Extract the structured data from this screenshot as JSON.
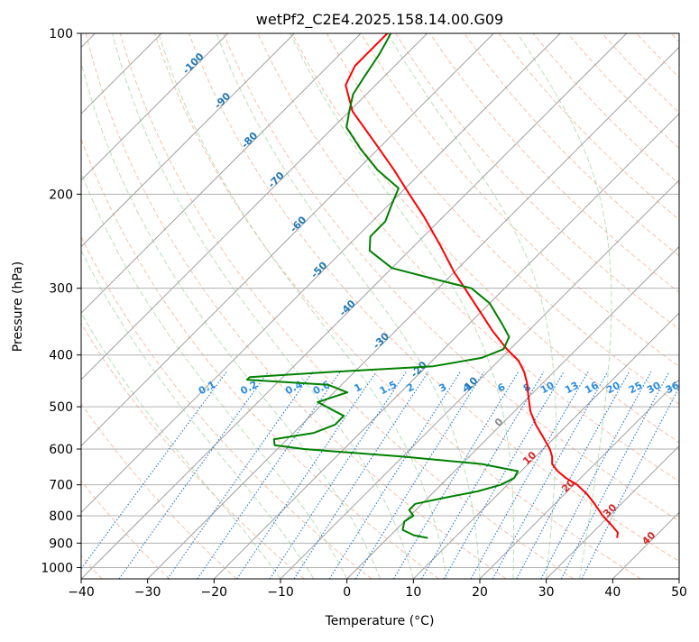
{
  "chart_data": {
    "type": "line",
    "title": "wetPf2_C2E4.2025.158.14.00.G09",
    "xlabel": "Temperature (°C)",
    "ylabel": "Pressure (hPa)",
    "xlim": [
      -40,
      50
    ],
    "ylim": [
      1050,
      100
    ],
    "y_scale": "log",
    "skew": true,
    "grid": true,
    "x_ticks": [
      -40,
      -30,
      -20,
      -10,
      0,
      10,
      20,
      30,
      40,
      50
    ],
    "y_ticks": [
      1000,
      900,
      800,
      700,
      600,
      500,
      400,
      300,
      200,
      100
    ],
    "series": [
      {
        "key": "temperature",
        "color": "#ff0000",
        "points": [
          {
            "p": 880,
            "t": 34.5
          },
          {
            "p": 860,
            "t": 33.8
          },
          {
            "p": 830,
            "t": 31.5
          },
          {
            "p": 800,
            "t": 29.0
          },
          {
            "p": 760,
            "t": 26.0
          },
          {
            "p": 730,
            "t": 23.5
          },
          {
            "p": 700,
            "t": 20.5
          },
          {
            "p": 680,
            "t": 17.8
          },
          {
            "p": 660,
            "t": 15.5
          },
          {
            "p": 640,
            "t": 13.6
          },
          {
            "p": 620,
            "t": 12.5
          },
          {
            "p": 600,
            "t": 11.0
          },
          {
            "p": 570,
            "t": 8.2
          },
          {
            "p": 540,
            "t": 5.2
          },
          {
            "p": 510,
            "t": 2.4
          },
          {
            "p": 480,
            "t": 0.0
          },
          {
            "p": 450,
            "t": -2.5
          },
          {
            "p": 430,
            "t": -4.5
          },
          {
            "p": 410,
            "t": -7.0
          },
          {
            "p": 390,
            "t": -10.5
          },
          {
            "p": 360,
            "t": -15.5
          },
          {
            "p": 330,
            "t": -20.5
          },
          {
            "p": 300,
            "t": -26.0
          },
          {
            "p": 280,
            "t": -30.0
          },
          {
            "p": 250,
            "t": -36.0
          },
          {
            "p": 220,
            "t": -43.0
          },
          {
            "p": 200,
            "t": -48.5
          },
          {
            "p": 180,
            "t": -54.5
          },
          {
            "p": 160,
            "t": -61.5
          },
          {
            "p": 140,
            "t": -69.5
          },
          {
            "p": 125,
            "t": -74.5
          },
          {
            "p": 115,
            "t": -76.0
          },
          {
            "p": 108,
            "t": -76.0
          },
          {
            "p": 100,
            "t": -76.0
          }
        ]
      },
      {
        "key": "dewpoint",
        "color": "#008000",
        "points": [
          {
            "p": 880,
            "t": 6.0
          },
          {
            "p": 870,
            "t": 3.5
          },
          {
            "p": 850,
            "t": 1.0
          },
          {
            "p": 820,
            "t": 0.0
          },
          {
            "p": 800,
            "t": 0.5
          },
          {
            "p": 780,
            "t": -1.0
          },
          {
            "p": 760,
            "t": -1.0
          },
          {
            "p": 740,
            "t": 2.5
          },
          {
            "p": 720,
            "t": 6.5
          },
          {
            "p": 700,
            "t": 9.0
          },
          {
            "p": 680,
            "t": 10.0
          },
          {
            "p": 660,
            "t": 9.5
          },
          {
            "p": 640,
            "t": 3.0
          },
          {
            "p": 620,
            "t": -10.0
          },
          {
            "p": 600,
            "t": -26.0
          },
          {
            "p": 590,
            "t": -31.0
          },
          {
            "p": 575,
            "t": -32.0
          },
          {
            "p": 560,
            "t": -27.0
          },
          {
            "p": 540,
            "t": -25.0
          },
          {
            "p": 520,
            "t": -25.0
          },
          {
            "p": 510,
            "t": -27.0
          },
          {
            "p": 490,
            "t": -31.0
          },
          {
            "p": 470,
            "t": -28.0
          },
          {
            "p": 455,
            "t": -32.0
          },
          {
            "p": 445,
            "t": -45.0
          },
          {
            "p": 440,
            "t": -45.0
          },
          {
            "p": 430,
            "t": -33.0
          },
          {
            "p": 420,
            "t": -19.0
          },
          {
            "p": 405,
            "t": -13.0
          },
          {
            "p": 390,
            "t": -11.0
          },
          {
            "p": 370,
            "t": -12.0
          },
          {
            "p": 350,
            "t": -15.0
          },
          {
            "p": 320,
            "t": -20.0
          },
          {
            "p": 300,
            "t": -25.0
          },
          {
            "p": 290,
            "t": -31.0
          },
          {
            "p": 275,
            "t": -40.0
          },
          {
            "p": 255,
            "t": -46.0
          },
          {
            "p": 240,
            "t": -48.0
          },
          {
            "p": 225,
            "t": -48.0
          },
          {
            "p": 210,
            "t": -49.5
          },
          {
            "p": 195,
            "t": -51.0
          },
          {
            "p": 180,
            "t": -57.0
          },
          {
            "p": 165,
            "t": -62.5
          },
          {
            "p": 150,
            "t": -68.0
          },
          {
            "p": 140,
            "t": -70.0
          },
          {
            "p": 130,
            "t": -72.0
          },
          {
            "p": 120,
            "t": -73.0
          },
          {
            "p": 110,
            "t": -74.0
          },
          {
            "p": 103,
            "t": -75.0
          },
          {
            "p": 100,
            "t": -75.5
          }
        ]
      }
    ],
    "dry_adiabat_labels": [
      "-100",
      "-90",
      "-80",
      "-70",
      "-60",
      "-50",
      "-40",
      "-30",
      "-20",
      "-10",
      "0",
      "10",
      "20",
      "30",
      "40"
    ],
    "mixing_ratio_labels": [
      "0.1",
      "0.2",
      "0.4",
      "0.6",
      "1",
      "1.5",
      "2",
      "3",
      "4",
      "6",
      "8",
      "10",
      "13",
      "16",
      "20",
      "25",
      "30",
      "36"
    ],
    "mixing_ratio_values": [
      0.1,
      0.2,
      0.4,
      0.6,
      1,
      1.5,
      2,
      3,
      4,
      6,
      8,
      10,
      13,
      16,
      20,
      25,
      30,
      36
    ],
    "colors": {
      "isobar": "#b0b0b0",
      "isotherm": "#a0a0a0",
      "dry_adiabat": "#f4a582",
      "moist_adiabat": "#a6d8a6",
      "mixing_ratio": "#1f78d4",
      "label_cold": "#1f77b4",
      "label_warm": "#d62728",
      "mixing_label": "#2b8cdf"
    }
  }
}
